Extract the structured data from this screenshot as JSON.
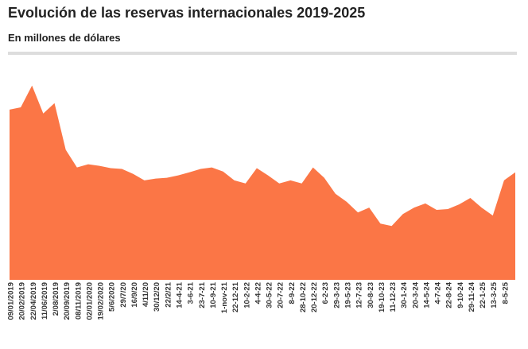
{
  "chart_data": {
    "type": "area",
    "title": "Evolución de las reservas internacionales 2019-2025",
    "subtitle": "En millones de dólares",
    "color": "#fb7646",
    "ylim": [
      0,
      85000
    ],
    "categories": [
      "09/01/2019",
      "20/02/2019",
      "22/04/2019",
      "11/06/2019",
      "2/08/2019",
      "20/09/2019",
      "08/11/2019",
      "02/01/2020",
      "19/02/2020",
      "5/6/2020",
      "29/7/20",
      "16/9/20",
      "4/11/20",
      "30/12/20",
      "22/2/21",
      "14-4-21",
      "3-6-21",
      "23-7-21",
      "10-9-21",
      "1-nov-21",
      "22-12-21",
      "10-2-22",
      "4-4-22",
      "30-5-22",
      "20-7-22",
      "8-9-22",
      "28-10-22",
      "20-12-22",
      "6-2-23",
      "29-3-23",
      "19-5-23",
      "12-7-23",
      "30-8-23",
      "19-10-23",
      "11-12-23",
      "30-1-24",
      "20-3-24",
      "14-5-24",
      "4-7-24",
      "22-8-24",
      "9-10-24",
      "29-11-24",
      "22-1-25",
      "13-3-25",
      "8-5-25",
      null
    ],
    "values": [
      65700,
      66600,
      75000,
      64200,
      68200,
      50200,
      43400,
      44600,
      44000,
      43100,
      42800,
      40900,
      38400,
      39100,
      39400,
      40300,
      41500,
      42800,
      43400,
      41800,
      38400,
      37200,
      43100,
      40300,
      37200,
      38400,
      37200,
      43400,
      39400,
      33200,
      30100,
      26000,
      27900,
      21700,
      20800,
      25400,
      27900,
      29500,
      27000,
      27300,
      29100,
      31600,
      27900,
      24800,
      38400,
      41500
    ]
  }
}
